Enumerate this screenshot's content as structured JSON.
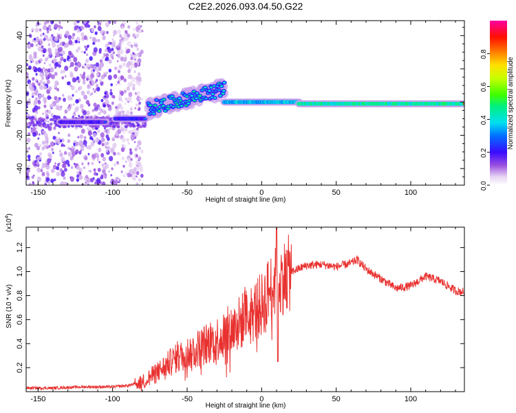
{
  "title": "C2E2.2026.093.04.50.G22",
  "chart_data": [
    {
      "type": "heatmap",
      "title": "C2E2.2026.093.04.50.G22",
      "xlabel": "Height of straight line (km)",
      "ylabel": "Frequency (Hz)",
      "xlim": [
        -158,
        136
      ],
      "ylim": [
        -50,
        49
      ],
      "x_ticks": [
        -150,
        -100,
        -50,
        0,
        50,
        100
      ],
      "y_ticks": [
        -40,
        -20,
        0,
        20,
        40
      ],
      "x_tick_labels": [
        "-150",
        "-100",
        "-50",
        "0",
        "50",
        "100"
      ],
      "y_tick_labels": [
        "-40",
        "-20",
        "0",
        "20",
        "40"
      ],
      "colorbar": {
        "label": "Normalized spectral amplitude",
        "range": [
          0,
          1
        ],
        "ticks": [
          0.0,
          0.2,
          0.4,
          0.6,
          0.8
        ],
        "tick_labels": [
          "0.0",
          "0.2",
          "0.4",
          "0.6",
          "0.8"
        ]
      },
      "features": {
        "noise_region_x": [
          -158,
          -80
        ],
        "track_segments": [
          {
            "x": [
              -135,
              -105
            ],
            "freq": -12,
            "amp": 0.35
          },
          {
            "x": [
              -98,
              -78
            ],
            "freq": -10,
            "amp": 0.4
          },
          {
            "x": [
              -76,
              -25
            ],
            "freq_start": -4,
            "freq_end": 8,
            "amp": 0.45
          },
          {
            "x": [
              -25,
              25
            ],
            "freq": 0,
            "amp": 0.7
          },
          {
            "x": [
              25,
              136
            ],
            "freq": -1,
            "amp": 0.85
          }
        ]
      }
    },
    {
      "type": "line",
      "xlabel": "Height of straight line (km)",
      "ylabel": "SNR (10 * v/v)",
      "y_scale_label": "(x10",
      "y_scale_exp": "4",
      "xlim": [
        -158,
        136
      ],
      "ylim": [
        0,
        1.37
      ],
      "x_ticks": [
        -150,
        -100,
        -50,
        0,
        50,
        100
      ],
      "x_tick_labels": [
        "-150",
        "-100",
        "-50",
        "0",
        "50",
        "100"
      ],
      "y_ticks": [
        0.2,
        0.4,
        0.6,
        0.8,
        1.0,
        1.2
      ],
      "y_tick_labels": [
        "0.2",
        "0.4",
        "0.6",
        "0.8",
        "1.0",
        "1.2"
      ],
      "series": [
        {
          "name": "SNR",
          "color": "#e8312f",
          "x": [
            -158,
            -140,
            -120,
            -100,
            -90,
            -80,
            -70,
            -60,
            -50,
            -40,
            -30,
            -20,
            -10,
            0,
            5,
            10,
            15,
            20,
            30,
            40,
            50,
            60,
            64,
            70,
            80,
            90,
            100,
            110,
            120,
            130,
            136
          ],
          "y": [
            0.03,
            0.03,
            0.04,
            0.04,
            0.05,
            0.08,
            0.16,
            0.26,
            0.32,
            0.38,
            0.44,
            0.52,
            0.62,
            0.72,
            0.85,
            0.92,
            0.96,
            1.0,
            1.05,
            1.06,
            1.04,
            1.07,
            1.1,
            1.02,
            0.94,
            0.86,
            0.88,
            0.96,
            0.92,
            0.84,
            0.83
          ]
        }
      ]
    }
  ]
}
